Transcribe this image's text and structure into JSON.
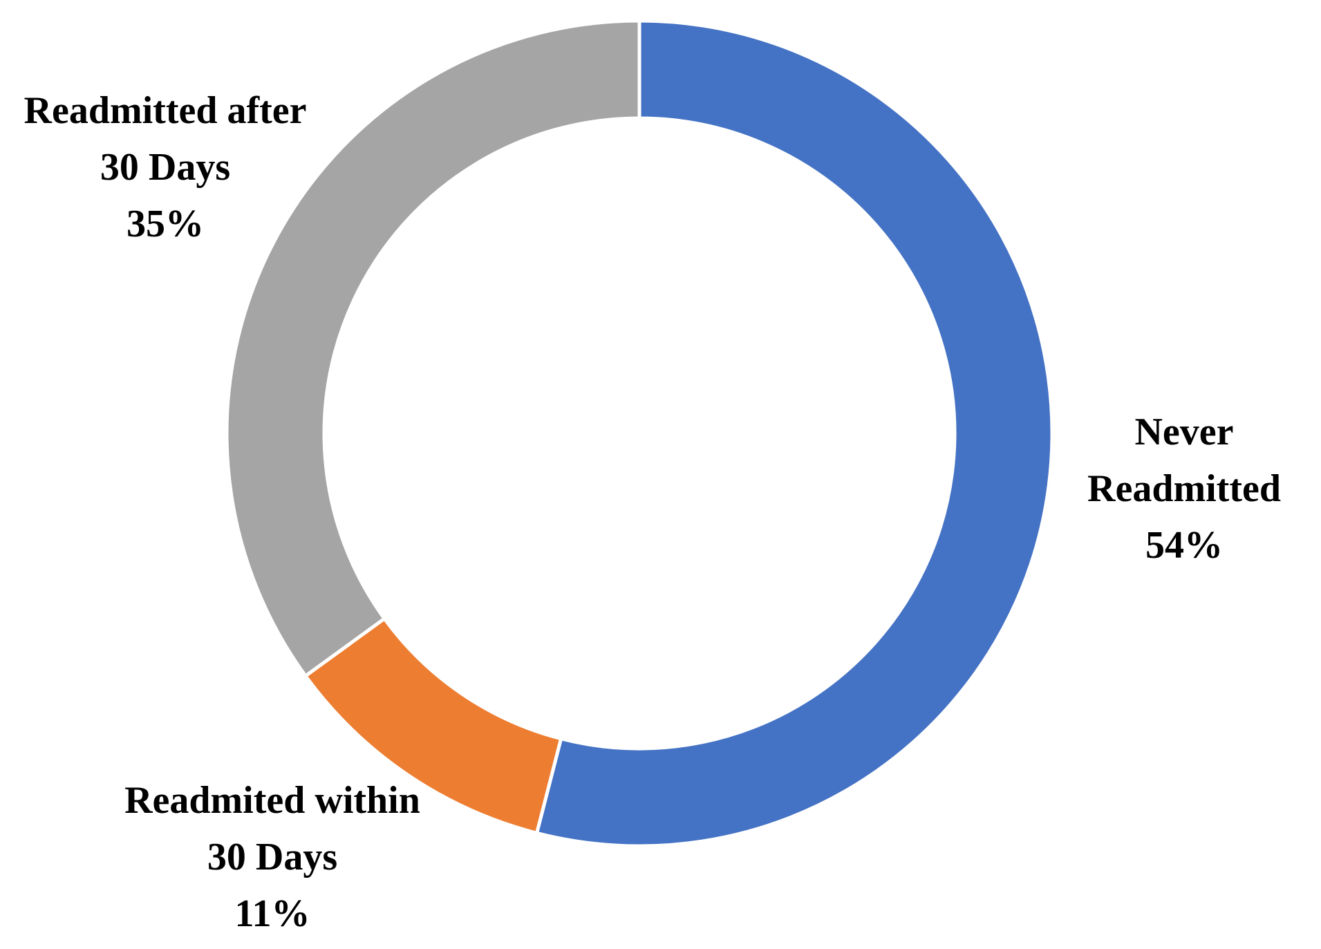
{
  "chart_data": {
    "type": "donut",
    "categories": [
      "Never Readmitted",
      "Readmited within 30 Days",
      "Readmitted after 30 Days"
    ],
    "values": [
      54,
      11,
      35
    ],
    "value_labels": [
      "54%",
      "11%",
      "35%"
    ],
    "colors": [
      "#4472c4",
      "#ed7d31",
      "#a5a5a5"
    ]
  }
}
